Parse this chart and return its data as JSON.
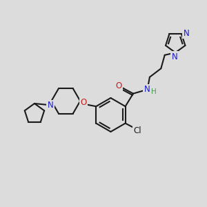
{
  "bg_color": "#dcdcdc",
  "bond_color": "#1a1a1a",
  "n_color": "#1a1acc",
  "o_color": "#cc1a1a",
  "h_color": "#4a9a4a",
  "lw": 1.5,
  "fs": 7.5,
  "xlim": [
    0,
    10
  ],
  "ylim": [
    0,
    10
  ]
}
